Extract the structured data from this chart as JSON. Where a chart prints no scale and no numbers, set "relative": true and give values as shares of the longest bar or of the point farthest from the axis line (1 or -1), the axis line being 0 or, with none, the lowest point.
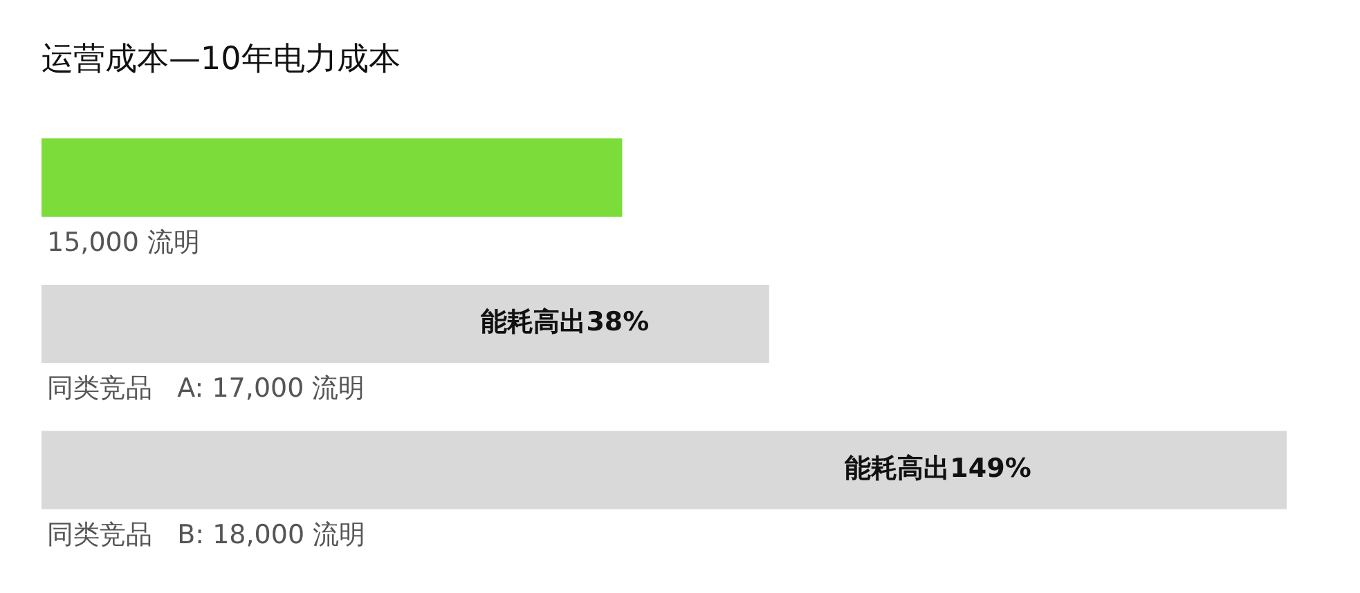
{
  "chart_data": {
    "type": "bar",
    "orientation": "horizontal",
    "relative": true,
    "title": "运营成本—10年电力成本",
    "categories": [
      "15,000 流明",
      "同类竞品   A: 17,000 流明",
      "同类竞品   B: 18,000 流明"
    ],
    "values": [
      0.466,
      0.584,
      1
    ],
    "colors": [
      "#7bdc3a",
      "#d9d9d9",
      "#d9d9d9"
    ],
    "annotations": [
      "能耗高出38%",
      "能耗高出149%"
    ],
    "legend": false
  }
}
